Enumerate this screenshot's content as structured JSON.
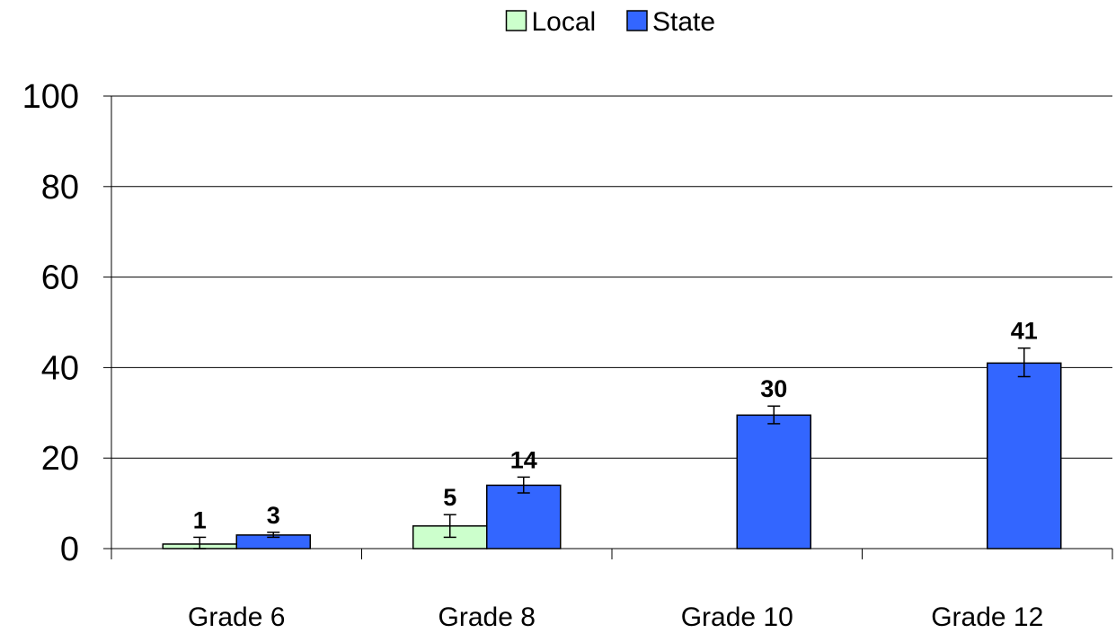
{
  "chart_data": {
    "type": "bar",
    "categories": [
      "Grade 6",
      "Grade 8",
      "Grade 10",
      "Grade 12"
    ],
    "series": [
      {
        "name": "Local",
        "color": "#ccffcc",
        "values": [
          1,
          5,
          null,
          null
        ],
        "labels": [
          "1",
          "5",
          "",
          ""
        ],
        "error_low": [
          0,
          2.5,
          null,
          null
        ],
        "error_high": [
          2.5,
          7.5,
          null,
          null
        ]
      },
      {
        "name": "State",
        "color": "#3366ff",
        "values": [
          3,
          14,
          29.5,
          41
        ],
        "labels": [
          "3",
          "14",
          "30",
          "41"
        ],
        "error_low": [
          2.5,
          12.3,
          27.6,
          38
        ],
        "error_high": [
          3.6,
          15.8,
          31.5,
          44.3
        ]
      }
    ],
    "ylim": [
      0,
      100
    ],
    "yticks": [
      0,
      20,
      40,
      60,
      80,
      100
    ],
    "grid": true,
    "legend_position": "top-center",
    "title": "",
    "xlabel": "",
    "ylabel": ""
  }
}
